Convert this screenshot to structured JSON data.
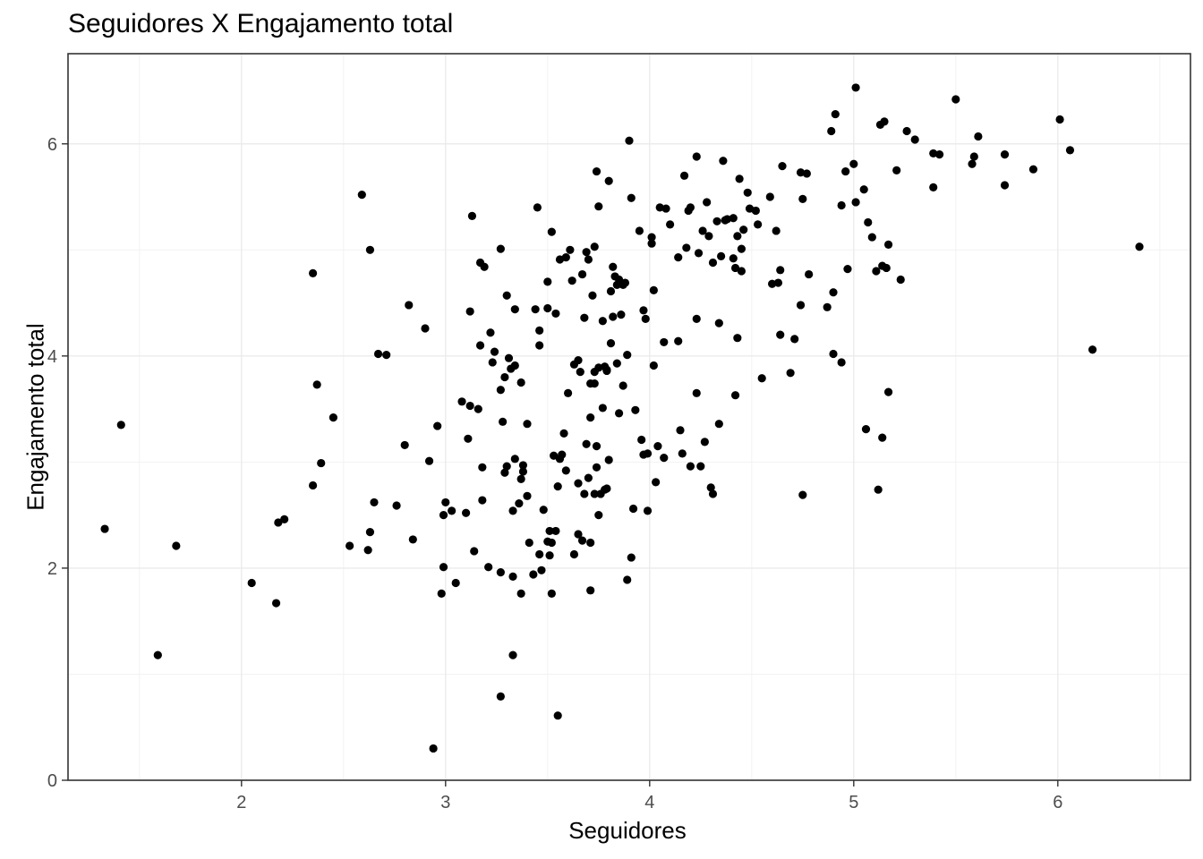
{
  "chart_data": {
    "type": "scatter",
    "title": "Seguidores X Engajamento total",
    "xlabel": "Seguidores",
    "ylabel": "Engajamento total",
    "xlim": [
      1.15,
      6.65
    ],
    "ylim": [
      0,
      6.85
    ],
    "x_ticks": [
      2,
      3,
      4,
      5,
      6
    ],
    "y_ticks": [
      0,
      2,
      4,
      6
    ],
    "grid": true,
    "point_color": "#000000",
    "points": [
      [
        1.33,
        2.37
      ],
      [
        1.41,
        3.35
      ],
      [
        1.59,
        1.18
      ],
      [
        1.68,
        2.21
      ],
      [
        2.05,
        1.86
      ],
      [
        2.17,
        1.67
      ],
      [
        2.18,
        2.43
      ],
      [
        2.21,
        2.46
      ],
      [
        2.35,
        4.78
      ],
      [
        2.35,
        2.78
      ],
      [
        2.37,
        3.73
      ],
      [
        2.39,
        2.99
      ],
      [
        2.45,
        3.42
      ],
      [
        2.53,
        2.21
      ],
      [
        2.59,
        5.52
      ],
      [
        2.62,
        2.17
      ],
      [
        2.63,
        5.0
      ],
      [
        2.63,
        2.34
      ],
      [
        2.65,
        2.62
      ],
      [
        2.67,
        4.02
      ],
      [
        2.71,
        4.01
      ],
      [
        2.76,
        2.59
      ],
      [
        2.8,
        3.16
      ],
      [
        2.82,
        4.48
      ],
      [
        2.84,
        2.27
      ],
      [
        2.9,
        4.26
      ],
      [
        2.92,
        3.01
      ],
      [
        2.94,
        0.3
      ],
      [
        2.96,
        3.34
      ],
      [
        2.98,
        1.76
      ],
      [
        2.99,
        2.01
      ],
      [
        2.99,
        2.5
      ],
      [
        3.0,
        2.62
      ],
      [
        3.03,
        2.54
      ],
      [
        3.05,
        1.86
      ],
      [
        3.08,
        3.57
      ],
      [
        3.1,
        2.52
      ],
      [
        3.11,
        3.22
      ],
      [
        3.12,
        3.53
      ],
      [
        3.12,
        4.42
      ],
      [
        3.13,
        5.32
      ],
      [
        3.14,
        2.16
      ],
      [
        3.16,
        3.5
      ],
      [
        3.17,
        4.1
      ],
      [
        3.17,
        4.88
      ],
      [
        3.18,
        2.95
      ],
      [
        3.19,
        4.84
      ],
      [
        3.18,
        2.64
      ],
      [
        3.21,
        2.01
      ],
      [
        3.22,
        4.22
      ],
      [
        3.23,
        3.94
      ],
      [
        3.24,
        4.04
      ],
      [
        3.27,
        5.01
      ],
      [
        3.27,
        1.96
      ],
      [
        3.27,
        0.79
      ],
      [
        3.27,
        3.68
      ],
      [
        3.28,
        3.38
      ],
      [
        3.29,
        2.9
      ],
      [
        3.29,
        3.8
      ],
      [
        3.3,
        2.96
      ],
      [
        3.3,
        4.57
      ],
      [
        3.31,
        3.98
      ],
      [
        3.32,
        3.88
      ],
      [
        3.33,
        1.92
      ],
      [
        3.33,
        2.54
      ],
      [
        3.34,
        4.44
      ],
      [
        3.33,
        1.18
      ],
      [
        3.34,
        3.91
      ],
      [
        3.34,
        3.03
      ],
      [
        3.36,
        2.61
      ],
      [
        3.37,
        3.75
      ],
      [
        3.38,
        2.97
      ],
      [
        3.38,
        2.91
      ],
      [
        3.37,
        1.76
      ],
      [
        3.37,
        2.84
      ],
      [
        3.4,
        2.68
      ],
      [
        3.4,
        3.36
      ],
      [
        3.41,
        2.24
      ],
      [
        3.43,
        1.94
      ],
      [
        3.44,
        4.44
      ],
      [
        3.45,
        5.4
      ],
      [
        3.46,
        4.1
      ],
      [
        3.46,
        4.24
      ],
      [
        3.46,
        2.13
      ],
      [
        3.47,
        1.98
      ],
      [
        3.48,
        2.55
      ],
      [
        3.5,
        4.7
      ],
      [
        3.5,
        4.45
      ],
      [
        3.5,
        2.25
      ],
      [
        3.51,
        2.35
      ],
      [
        3.51,
        2.12
      ],
      [
        3.52,
        5.17
      ],
      [
        3.52,
        1.76
      ],
      [
        3.52,
        2.24
      ],
      [
        3.53,
        3.06
      ],
      [
        3.54,
        2.35
      ],
      [
        3.54,
        4.4
      ],
      [
        3.55,
        0.61
      ],
      [
        3.55,
        2.77
      ],
      [
        3.56,
        4.91
      ],
      [
        3.56,
        3.03
      ],
      [
        3.57,
        3.07
      ],
      [
        3.58,
        3.27
      ],
      [
        3.59,
        2.92
      ],
      [
        3.59,
        4.93
      ],
      [
        3.6,
        3.65
      ],
      [
        3.61,
        5.0
      ],
      [
        3.62,
        4.71
      ],
      [
        3.63,
        3.92
      ],
      [
        3.63,
        2.13
      ],
      [
        3.65,
        2.8
      ],
      [
        3.65,
        3.96
      ],
      [
        3.65,
        2.32
      ],
      [
        3.66,
        3.85
      ],
      [
        3.67,
        4.77
      ],
      [
        3.67,
        2.26
      ],
      [
        3.68,
        4.36
      ],
      [
        3.68,
        2.7
      ],
      [
        3.69,
        3.17
      ],
      [
        3.69,
        4.98
      ],
      [
        3.7,
        2.85
      ],
      [
        3.7,
        4.91
      ],
      [
        3.71,
        1.79
      ],
      [
        3.71,
        3.42
      ],
      [
        3.71,
        3.74
      ],
      [
        3.71,
        2.24
      ],
      [
        3.72,
        4.57
      ],
      [
        3.73,
        2.7
      ],
      [
        3.73,
        3.85
      ],
      [
        3.73,
        3.74
      ],
      [
        3.73,
        5.03
      ],
      [
        3.74,
        5.74
      ],
      [
        3.74,
        3.15
      ],
      [
        3.74,
        2.95
      ],
      [
        3.75,
        5.41
      ],
      [
        3.75,
        2.5
      ],
      [
        3.75,
        3.89
      ],
      [
        3.76,
        2.7
      ],
      [
        3.77,
        4.33
      ],
      [
        3.77,
        3.51
      ],
      [
        3.78,
        3.9
      ],
      [
        3.78,
        2.74
      ],
      [
        3.79,
        3.86
      ],
      [
        3.79,
        3.87
      ],
      [
        3.79,
        2.75
      ],
      [
        3.8,
        5.65
      ],
      [
        3.8,
        3.02
      ],
      [
        3.81,
        4.61
      ],
      [
        3.81,
        4.12
      ],
      [
        3.82,
        4.84
      ],
      [
        3.82,
        4.37
      ],
      [
        3.83,
        4.75
      ],
      [
        3.84,
        4.67
      ],
      [
        3.84,
        3.93
      ],
      [
        3.85,
        3.46
      ],
      [
        3.85,
        4.72
      ],
      [
        3.86,
        4.39
      ],
      [
        3.87,
        4.67
      ],
      [
        3.87,
        3.72
      ],
      [
        3.88,
        4.69
      ],
      [
        3.89,
        1.89
      ],
      [
        3.89,
        4.01
      ],
      [
        3.9,
        6.03
      ],
      [
        3.91,
        2.1
      ],
      [
        3.91,
        5.49
      ],
      [
        3.92,
        2.56
      ],
      [
        3.93,
        3.49
      ],
      [
        3.95,
        5.18
      ],
      [
        3.96,
        3.21
      ],
      [
        3.97,
        4.43
      ],
      [
        3.97,
        3.07
      ],
      [
        3.98,
        4.35
      ],
      [
        3.99,
        3.08
      ],
      [
        3.99,
        2.54
      ],
      [
        4.01,
        5.12
      ],
      [
        4.01,
        5.06
      ],
      [
        4.02,
        4.62
      ],
      [
        4.02,
        3.91
      ],
      [
        4.03,
        2.81
      ],
      [
        4.04,
        3.15
      ],
      [
        4.05,
        5.4
      ],
      [
        4.07,
        4.13
      ],
      [
        4.07,
        3.04
      ],
      [
        4.08,
        5.39
      ],
      [
        4.1,
        5.24
      ],
      [
        4.14,
        4.93
      ],
      [
        4.14,
        4.14
      ],
      [
        4.15,
        3.3
      ],
      [
        4.16,
        3.08
      ],
      [
        4.17,
        5.7
      ],
      [
        4.18,
        5.02
      ],
      [
        4.19,
        5.37
      ],
      [
        4.2,
        5.4
      ],
      [
        4.2,
        2.96
      ],
      [
        4.23,
        5.88
      ],
      [
        4.23,
        4.35
      ],
      [
        4.23,
        3.65
      ],
      [
        4.24,
        4.97
      ],
      [
        4.25,
        2.96
      ],
      [
        4.26,
        5.18
      ],
      [
        4.27,
        3.19
      ],
      [
        4.28,
        5.45
      ],
      [
        4.29,
        5.13
      ],
      [
        4.3,
        2.76
      ],
      [
        4.31,
        4.88
      ],
      [
        4.31,
        2.7
      ],
      [
        4.33,
        5.27
      ],
      [
        4.34,
        4.31
      ],
      [
        4.34,
        3.36
      ],
      [
        4.35,
        4.94
      ],
      [
        4.36,
        5.84
      ],
      [
        4.37,
        5.28
      ],
      [
        4.38,
        5.29
      ],
      [
        4.41,
        5.3
      ],
      [
        4.41,
        4.92
      ],
      [
        4.42,
        3.63
      ],
      [
        4.42,
        4.83
      ],
      [
        4.43,
        5.13
      ],
      [
        4.43,
        4.17
      ],
      [
        4.44,
        5.67
      ],
      [
        4.45,
        5.01
      ],
      [
        4.45,
        4.8
      ],
      [
        4.46,
        5.19
      ],
      [
        4.48,
        5.54
      ],
      [
        4.49,
        5.39
      ],
      [
        4.52,
        5.37
      ],
      [
        4.53,
        5.24
      ],
      [
        4.55,
        3.79
      ],
      [
        4.59,
        5.5
      ],
      [
        4.6,
        4.68
      ],
      [
        4.62,
        5.18
      ],
      [
        4.63,
        4.69
      ],
      [
        4.64,
        4.2
      ],
      [
        4.64,
        4.81
      ],
      [
        4.65,
        5.79
      ],
      [
        4.69,
        3.84
      ],
      [
        4.71,
        4.16
      ],
      [
        4.74,
        4.48
      ],
      [
        4.74,
        5.73
      ],
      [
        4.75,
        5.48
      ],
      [
        4.75,
        2.69
      ],
      [
        4.77,
        5.72
      ],
      [
        4.78,
        4.77
      ],
      [
        4.87,
        4.46
      ],
      [
        4.89,
        6.12
      ],
      [
        4.9,
        4.02
      ],
      [
        4.9,
        4.6
      ],
      [
        4.91,
        6.28
      ],
      [
        4.94,
        3.94
      ],
      [
        4.94,
        5.42
      ],
      [
        4.96,
        5.74
      ],
      [
        4.97,
        4.82
      ],
      [
        5.0,
        5.81
      ],
      [
        5.01,
        6.53
      ],
      [
        5.01,
        5.45
      ],
      [
        5.05,
        5.57
      ],
      [
        5.06,
        3.31
      ],
      [
        5.07,
        5.26
      ],
      [
        5.09,
        5.12
      ],
      [
        5.11,
        4.8
      ],
      [
        5.12,
        2.74
      ],
      [
        5.13,
        6.18
      ],
      [
        5.14,
        4.85
      ],
      [
        5.14,
        3.23
      ],
      [
        5.15,
        6.21
      ],
      [
        5.16,
        4.83
      ],
      [
        5.17,
        3.66
      ],
      [
        5.17,
        5.05
      ],
      [
        5.21,
        5.75
      ],
      [
        5.23,
        4.72
      ],
      [
        5.26,
        6.12
      ],
      [
        5.3,
        6.04
      ],
      [
        5.39,
        5.91
      ],
      [
        5.39,
        5.59
      ],
      [
        5.42,
        5.9
      ],
      [
        5.5,
        6.42
      ],
      [
        5.58,
        5.81
      ],
      [
        5.59,
        5.88
      ],
      [
        5.61,
        6.07
      ],
      [
        5.74,
        5.9
      ],
      [
        5.74,
        5.61
      ],
      [
        5.88,
        5.76
      ],
      [
        6.01,
        6.23
      ],
      [
        6.06,
        5.94
      ],
      [
        6.17,
        4.06
      ],
      [
        6.4,
        5.03
      ]
    ]
  }
}
